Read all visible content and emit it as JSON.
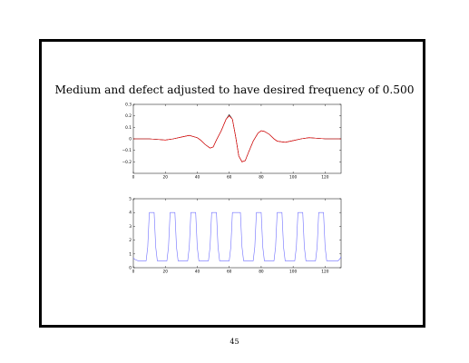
{
  "slide": {
    "title": "Medium and defect adjusted to have desired frequency of 0.500",
    "page_number": "45"
  },
  "colors": {
    "frame": "#000000",
    "top_series_black": "#000000",
    "top_series_red": "#ff0000",
    "bottom_series": "#7070ff"
  },
  "chart_data": [
    {
      "type": "line",
      "title": "",
      "xlabel": "",
      "ylabel": "",
      "xlim": [
        0,
        130
      ],
      "ylim": [
        -0.3,
        0.3
      ],
      "xticks": [
        0,
        20,
        40,
        60,
        80,
        100,
        120
      ],
      "yticks": [
        -0.2,
        -0.1,
        0,
        0.1,
        0.2,
        0.3
      ],
      "ytick_labels": [
        "−0.2",
        "−0.1",
        "0",
        "0.1",
        "0.2",
        "0.3"
      ],
      "grid": false,
      "series": [
        {
          "color": "#000000",
          "x": [
            0,
            5,
            10,
            15,
            20,
            25,
            30,
            35,
            40,
            42,
            45,
            48,
            50,
            52,
            55,
            58,
            60,
            62,
            64,
            66,
            68,
            70,
            72,
            75,
            78,
            80,
            82,
            85,
            88,
            90,
            95,
            100,
            105,
            110,
            115,
            120,
            125,
            130
          ],
          "y": [
            0,
            0,
            0,
            -0.005,
            -0.01,
            0,
            0.015,
            0.03,
            0.01,
            -0.01,
            -0.05,
            -0.08,
            -0.07,
            -0.01,
            0.07,
            0.17,
            0.21,
            0.17,
            0.02,
            -0.15,
            -0.2,
            -0.19,
            -0.12,
            -0.02,
            0.05,
            0.07,
            0.065,
            0.04,
            0,
            -0.02,
            -0.03,
            -0.015,
            0,
            0.01,
            0.005,
            0,
            0,
            0
          ]
        },
        {
          "color": "#ff0000",
          "x": [
            0,
            5,
            10,
            15,
            20,
            25,
            30,
            35,
            40,
            42,
            45,
            48,
            50,
            52,
            55,
            58,
            60,
            62,
            64,
            66,
            68,
            70,
            72,
            75,
            78,
            80,
            82,
            85,
            88,
            90,
            95,
            100,
            105,
            110,
            115,
            120,
            125,
            130
          ],
          "y": [
            0,
            0,
            0,
            -0.005,
            -0.01,
            0,
            0.015,
            0.03,
            0.01,
            -0.01,
            -0.05,
            -0.08,
            -0.07,
            -0.01,
            0.07,
            0.17,
            0.2,
            0.17,
            0.02,
            -0.15,
            -0.2,
            -0.19,
            -0.12,
            -0.02,
            0.05,
            0.07,
            0.065,
            0.04,
            0,
            -0.02,
            -0.03,
            -0.015,
            0,
            0.01,
            0.005,
            0,
            0,
            0
          ]
        }
      ]
    },
    {
      "type": "line",
      "title": "",
      "xlabel": "",
      "ylabel": "",
      "xlim": [
        0,
        130
      ],
      "ylim": [
        0,
        5
      ],
      "xticks": [
        0,
        20,
        40,
        60,
        80,
        100,
        120
      ],
      "yticks": [
        0,
        1,
        2,
        3,
        4,
        5
      ],
      "ytick_labels": [
        "0",
        "1",
        "2",
        "3",
        "4",
        "5"
      ],
      "grid": false,
      "series": [
        {
          "color": "#7070ff",
          "x": [
            0,
            1,
            3,
            8,
            9,
            10,
            13,
            14,
            15,
            21,
            22,
            23,
            26,
            27,
            28,
            34,
            35,
            36,
            39,
            40,
            41,
            47,
            48,
            49,
            52,
            53,
            54,
            60,
            61,
            62,
            67,
            68,
            69,
            75,
            76,
            77,
            80,
            81,
            82,
            88,
            89,
            90,
            93,
            94,
            95,
            101,
            102,
            103,
            106,
            107,
            108,
            114,
            115,
            116,
            119,
            120,
            121,
            127,
            128,
            129,
            130
          ],
          "y": [
            0.7,
            0.6,
            0.5,
            0.5,
            1.5,
            4,
            4,
            1.5,
            0.5,
            0.5,
            1.5,
            4,
            4,
            1.5,
            0.5,
            0.5,
            1.5,
            4,
            4,
            1.5,
            0.5,
            0.5,
            1.5,
            4,
            4,
            1.5,
            0.5,
            0.5,
            1.5,
            4,
            4,
            1.5,
            0.5,
            0.5,
            1.5,
            4,
            4,
            1.5,
            0.5,
            0.5,
            1.5,
            4,
            4,
            1.5,
            0.5,
            0.5,
            1.5,
            4,
            4,
            1.5,
            0.5,
            0.5,
            1.5,
            4,
            4,
            1.5,
            0.5,
            0.5,
            0.5,
            0.6,
            0.8
          ]
        }
      ]
    }
  ]
}
